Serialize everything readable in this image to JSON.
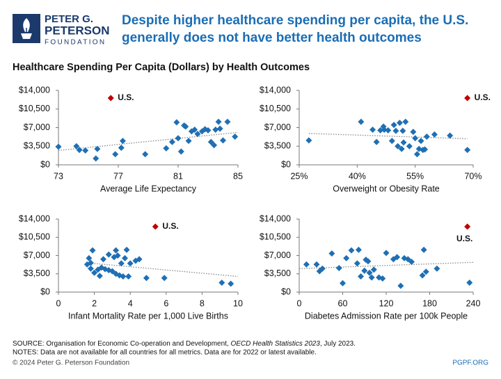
{
  "header": {
    "logo_lines": [
      "PETER G.",
      "PETERSON",
      "FOUNDATION"
    ],
    "title_lines": [
      "Despite higher healthcare spending per capita, the U.S.",
      "generally does not have better health outcomes"
    ],
    "subtitle": "Healthcare Spending Per Capita (Dollars) by Health Outcomes"
  },
  "chart_data": [
    {
      "type": "scatter",
      "x_label": "Average Life Expectancy",
      "xlim": [
        73,
        85
      ],
      "xticks": [
        73,
        77,
        81,
        85
      ],
      "ylim": [
        0,
        14000
      ],
      "yticks": [
        {
          "value": 0,
          "label": "$0"
        },
        {
          "value": 3500,
          "label": "$3,500"
        },
        {
          "value": 7000,
          "label": "$7,000"
        },
        {
          "value": 10500,
          "label": "$10,500"
        },
        {
          "value": 14000,
          "label": "$14,000"
        }
      ],
      "series": [
        {
          "color": "#1f6fb4",
          "x": [
            73.0,
            74.2,
            74.4,
            74.8,
            75.6,
            75.5,
            76.8,
            77.2,
            77.3,
            78.8,
            80.2,
            80.6,
            80.9,
            81.0,
            81.2,
            81.4,
            81.5,
            81.7,
            81.9,
            82.1,
            82.3,
            82.6,
            82.8,
            83.0,
            83.2,
            83.4,
            83.5,
            83.7,
            83.8,
            84.0,
            84.3,
            84.8
          ],
          "values": [
            3400,
            3500,
            2800,
            2700,
            3000,
            1200,
            2000,
            3200,
            4500,
            2000,
            3100,
            4300,
            8000,
            5000,
            2500,
            7400,
            7200,
            4500,
            6300,
            6600,
            5800,
            6300,
            6700,
            6500,
            4300,
            3700,
            6600,
            8100,
            6800,
            4600,
            8100,
            5300
          ]
        },
        {
          "name": "U.S.",
          "color": "#c00000",
          "x": [
            76.5
          ],
          "values": [
            12555
          ]
        }
      ],
      "trendline": {
        "color": "#888888",
        "x": [
          73,
          85
        ],
        "values": [
          2700,
          6100
        ]
      }
    },
    {
      "type": "scatter",
      "x_label": "Overweight or Obesity Rate",
      "xlim": [
        25,
        70
      ],
      "xticks": [
        {
          "value": 25,
          "label": "25%"
        },
        {
          "value": 40,
          "label": "40%"
        },
        {
          "value": 55,
          "label": "55%"
        },
        {
          "value": 70,
          "label": "70%"
        }
      ],
      "ylim": [
        0,
        14000
      ],
      "yticks": [
        {
          "value": 0,
          "label": "$0"
        },
        {
          "value": 3500,
          "label": "$3,500"
        },
        {
          "value": 7000,
          "label": "$7,000"
        },
        {
          "value": 10500,
          "label": "$10,500"
        },
        {
          "value": 14000,
          "label": "$14,000"
        }
      ],
      "series": [
        {
          "color": "#1f6fb4",
          "x": [
            27.5,
            41,
            44,
            45,
            46,
            46.8,
            47,
            48,
            49,
            49.5,
            50,
            50.5,
            51,
            51.5,
            51.8,
            52,
            52.5,
            53.5,
            54.5,
            55,
            55.5,
            56,
            56.5,
            57,
            57.5,
            58,
            60,
            64,
            68.5
          ],
          "values": [
            4600,
            8100,
            6600,
            4300,
            6500,
            7200,
            6600,
            6500,
            4500,
            7500,
            6400,
            3500,
            7900,
            3000,
            6400,
            4200,
            8100,
            3500,
            6200,
            5000,
            2000,
            3000,
            4500,
            2800,
            2900,
            5300,
            5700,
            5500,
            2800
          ]
        },
        {
          "name": "U.S.",
          "color": "#c00000",
          "x": [
            68.5
          ],
          "values": [
            12555
          ]
        }
      ],
      "trendline": {
        "color": "#888888",
        "x": [
          27.5,
          68.5
        ],
        "values": [
          5900,
          4900
        ]
      }
    },
    {
      "type": "scatter",
      "x_label": "Infant Mortality Rate per 1,000 Live Births",
      "xlim": [
        0,
        10
      ],
      "xticks": [
        0,
        2,
        4,
        6,
        8,
        10
      ],
      "ylim": [
        0,
        14000
      ],
      "yticks": [
        {
          "value": 0,
          "label": "$0"
        },
        {
          "value": 3500,
          "label": "$3,500"
        },
        {
          "value": 7000,
          "label": "$7,000"
        },
        {
          "value": 10500,
          "label": "$10,500"
        },
        {
          "value": 14000,
          "label": "$14,000"
        }
      ],
      "series": [
        {
          "color": "#1f6fb4",
          "x": [
            1.6,
            1.7,
            1.8,
            1.8,
            1.9,
            2.0,
            2.2,
            2.3,
            2.4,
            2.5,
            2.6,
            2.8,
            2.8,
            3.0,
            3.1,
            3.2,
            3.2,
            3.3,
            3.4,
            3.5,
            3.6,
            3.7,
            3.8,
            3.9,
            4.0,
            4.3,
            4.5,
            4.9,
            5.9,
            9.1,
            9.6
          ],
          "values": [
            5300,
            6500,
            4500,
            5600,
            8000,
            3700,
            4300,
            3100,
            4700,
            6300,
            4400,
            4200,
            7200,
            4000,
            6700,
            3500,
            8000,
            7000,
            3200,
            5500,
            3000,
            6500,
            8100,
            3000,
            5500,
            6000,
            6300,
            2700,
            2700,
            1800,
            1600
          ]
        },
        {
          "name": "U.S.",
          "color": "#c00000",
          "x": [
            5.4
          ],
          "values": [
            12555
          ]
        }
      ],
      "trendline": {
        "color": "#888888",
        "x": [
          1.6,
          10
        ],
        "values": [
          5600,
          3000
        ]
      }
    },
    {
      "type": "scatter",
      "x_label": "Diabetes Admission Rate per 100k People",
      "xlim": [
        0,
        240
      ],
      "xticks": [
        0,
        60,
        120,
        180,
        240
      ],
      "ylim": [
        0,
        14000
      ],
      "yticks": [
        {
          "value": 0,
          "label": "$0"
        },
        {
          "value": 3500,
          "label": "$3,500"
        },
        {
          "value": 7000,
          "label": "$7,000"
        },
        {
          "value": 10500,
          "label": "$10,500"
        },
        {
          "value": 14000,
          "label": "$14,000"
        }
      ],
      "series": [
        {
          "color": "#1f6fb4",
          "x": [
            10,
            24,
            28,
            32,
            45,
            55,
            60,
            65,
            72,
            80,
            82,
            85,
            90,
            92,
            95,
            97,
            100,
            103,
            110,
            115,
            120,
            130,
            135,
            140,
            145,
            150,
            155,
            170,
            172,
            175,
            190,
            235
          ],
          "values": [
            5300,
            5300,
            4000,
            4500,
            7400,
            4600,
            1700,
            6500,
            8000,
            5500,
            8100,
            3000,
            4100,
            6200,
            5900,
            3700,
            2800,
            4300,
            2800,
            2600,
            7500,
            6300,
            6700,
            1200,
            6500,
            6300,
            5800,
            3200,
            8100,
            3900,
            4500,
            1800
          ]
        },
        {
          "name": "U.S.",
          "color": "#c00000",
          "x": [
            232
          ],
          "values": [
            12555
          ]
        }
      ],
      "trendline": {
        "color": "#888888",
        "x": [
          0,
          240
        ],
        "values": [
          4500,
          5700
        ]
      }
    }
  ],
  "footer": {
    "source_parts": [
      "SOURCE: Organisation for Economic Co-operation and Development, ",
      "OECD Health Statistics 2023",
      ", July 2023."
    ],
    "notes": "NOTES: Data are not available for all countries for all metrics. Data are for 2022 or latest available.",
    "copyright": "© 2024 Peter G. Peterson Foundation",
    "site": "PGPF.ORG"
  }
}
